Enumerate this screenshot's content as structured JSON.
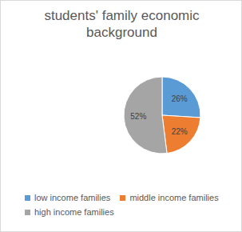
{
  "chart_data": {
    "type": "pie",
    "title": "students' family economic background",
    "categories": [
      "low income families",
      "middle income families",
      "high income families"
    ],
    "values": [
      26,
      22,
      52
    ],
    "value_labels": [
      "26%",
      "22%",
      "52%"
    ],
    "colors": [
      "#5b9bd5",
      "#ed7d31",
      "#a5a5a5"
    ],
    "data_labels": true,
    "legend": "bottom"
  }
}
